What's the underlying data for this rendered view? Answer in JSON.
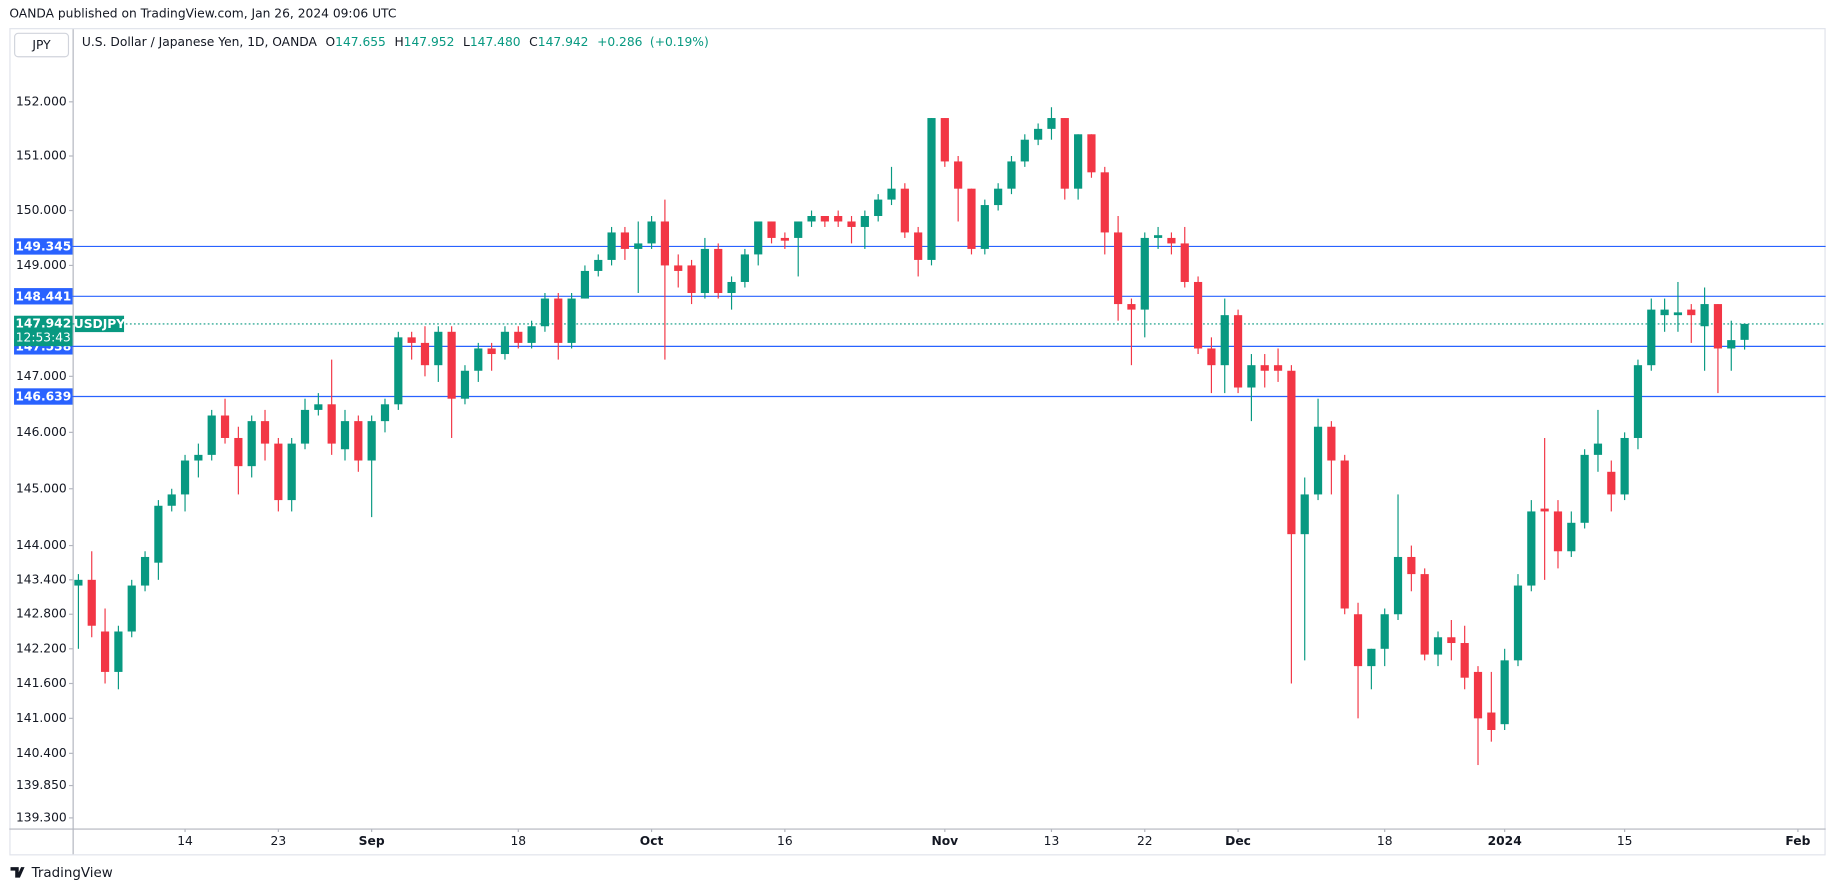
{
  "header": {
    "published": "OANDA published on TradingView.com, Jan 26, 2024 09:06 UTC"
  },
  "currency": "JPY",
  "legend": {
    "symbol": "U.S. Dollar / Japanese Yen, 1D, OANDA",
    "ohlc": [
      {
        "label": "O",
        "value": "147.655"
      },
      {
        "label": "H",
        "value": "147.952"
      },
      {
        "label": "L",
        "value": "147.480"
      },
      {
        "label": "C",
        "value": "147.942"
      }
    ],
    "change": "+0.286",
    "change_pct": "(+0.19%)"
  },
  "footer": {
    "brand": "TradingView"
  },
  "chart_data": {
    "type": "candlestick",
    "log_scale": true,
    "grid": false,
    "up_color": "#089981",
    "down_color": "#f23645",
    "level_color": "#2962ff",
    "x": [
      "2023-08-02",
      "2023-08-03",
      "2023-08-04",
      "2023-08-07",
      "2023-08-08",
      "2023-08-09",
      "2023-08-10",
      "2023-08-11",
      "2023-08-14",
      "2023-08-15",
      "2023-08-16",
      "2023-08-17",
      "2023-08-18",
      "2023-08-21",
      "2023-08-22",
      "2023-08-23",
      "2023-08-24",
      "2023-08-25",
      "2023-08-28",
      "2023-08-29",
      "2023-08-30",
      "2023-08-31",
      "2023-09-01",
      "2023-09-04",
      "2023-09-05",
      "2023-09-06",
      "2023-09-07",
      "2023-09-08",
      "2023-09-11",
      "2023-09-12",
      "2023-09-13",
      "2023-09-14",
      "2023-09-15",
      "2023-09-18",
      "2023-09-19",
      "2023-09-20",
      "2023-09-21",
      "2023-09-22",
      "2023-09-25",
      "2023-09-26",
      "2023-09-27",
      "2023-09-28",
      "2023-09-29",
      "2023-10-02",
      "2023-10-03",
      "2023-10-04",
      "2023-10-05",
      "2023-10-06",
      "2023-10-09",
      "2023-10-10",
      "2023-10-11",
      "2023-10-12",
      "2023-10-13",
      "2023-10-16",
      "2023-10-17",
      "2023-10-18",
      "2023-10-19",
      "2023-10-20",
      "2023-10-23",
      "2023-10-24",
      "2023-10-25",
      "2023-10-26",
      "2023-10-27",
      "2023-10-30",
      "2023-10-31",
      "2023-11-01",
      "2023-11-02",
      "2023-11-03",
      "2023-11-06",
      "2023-11-07",
      "2023-11-08",
      "2023-11-09",
      "2023-11-10",
      "2023-11-13",
      "2023-11-14",
      "2023-11-15",
      "2023-11-16",
      "2023-11-17",
      "2023-11-20",
      "2023-11-21",
      "2023-11-22",
      "2023-11-23",
      "2023-11-24",
      "2023-11-27",
      "2023-11-28",
      "2023-11-29",
      "2023-11-30",
      "2023-12-01",
      "2023-12-04",
      "2023-12-05",
      "2023-12-06",
      "2023-12-07",
      "2023-12-08",
      "2023-12-11",
      "2023-12-12",
      "2023-12-13",
      "2023-12-14",
      "2023-12-15",
      "2023-12-18",
      "2023-12-19",
      "2023-12-20",
      "2023-12-21",
      "2023-12-22",
      "2023-12-26",
      "2023-12-27",
      "2023-12-28",
      "2023-12-29",
      "2024-01-02",
      "2024-01-03",
      "2024-01-04",
      "2024-01-05",
      "2024-01-08",
      "2024-01-09",
      "2024-01-10",
      "2024-01-11",
      "2024-01-12",
      "2024-01-15",
      "2024-01-16",
      "2024-01-17",
      "2024-01-18",
      "2024-01-19",
      "2024-01-22",
      "2024-01-23",
      "2024-01-24",
      "2024-01-25",
      "2024-01-26"
    ],
    "open": [
      143.3,
      143.4,
      142.5,
      141.8,
      142.5,
      143.3,
      143.7,
      144.7,
      144.9,
      145.5,
      145.6,
      146.3,
      145.9,
      145.4,
      146.2,
      145.8,
      144.8,
      145.8,
      146.4,
      146.5,
      145.7,
      146.2,
      145.5,
      146.2,
      146.5,
      147.7,
      147.6,
      147.2,
      147.8,
      146.6,
      147.1,
      147.5,
      147.4,
      147.8,
      147.6,
      147.9,
      148.4,
      147.6,
      148.4,
      148.9,
      149.1,
      149.6,
      149.3,
      149.4,
      149.8,
      149.0,
      149.0,
      148.5,
      149.3,
      148.5,
      148.7,
      149.2,
      149.8,
      149.5,
      149.5,
      149.8,
      149.9,
      149.9,
      149.8,
      149.7,
      149.9,
      150.2,
      150.4,
      149.6,
      149.1,
      151.7,
      150.9,
      150.4,
      149.3,
      150.1,
      150.4,
      150.9,
      151.3,
      151.5,
      151.7,
      150.4,
      151.4,
      150.7,
      149.6,
      148.3,
      148.2,
      149.5,
      149.5,
      149.4,
      148.7,
      147.5,
      147.2,
      148.1,
      146.8,
      147.2,
      147.2,
      147.1,
      144.2,
      144.9,
      146.1,
      145.5,
      142.8,
      141.9,
      142.2,
      142.8,
      143.8,
      143.5,
      142.1,
      142.4,
      142.3,
      141.8,
      141.1,
      140.9,
      142.0,
      143.3,
      144.65,
      144.6,
      143.9,
      144.4,
      145.6,
      145.3,
      144.9,
      145.9,
      147.2,
      148.1,
      148.1,
      148.2,
      147.9,
      148.3,
      147.5,
      147.655
    ],
    "high": [
      143.5,
      143.9,
      142.9,
      142.6,
      143.4,
      143.9,
      144.8,
      145.0,
      145.6,
      145.8,
      146.4,
      146.6,
      146.1,
      146.3,
      146.4,
      145.9,
      145.9,
      146.6,
      146.7,
      147.3,
      146.4,
      146.3,
      146.3,
      146.6,
      147.8,
      147.8,
      147.9,
      147.9,
      147.9,
      147.2,
      147.6,
      147.6,
      147.9,
      147.9,
      148.0,
      148.5,
      148.5,
      148.5,
      149.0,
      149.2,
      149.7,
      149.7,
      149.8,
      149.9,
      150.2,
      149.2,
      149.1,
      149.5,
      149.4,
      148.8,
      149.3,
      149.8,
      149.8,
      149.6,
      149.8,
      150.0,
      149.9,
      150.0,
      149.9,
      150.0,
      150.3,
      150.8,
      150.5,
      149.7,
      151.7,
      151.7,
      151.0,
      150.4,
      150.2,
      150.5,
      151.0,
      151.4,
      151.6,
      151.9,
      151.7,
      151.4,
      151.4,
      150.8,
      149.9,
      148.4,
      149.6,
      149.7,
      149.6,
      149.7,
      148.8,
      147.7,
      148.4,
      148.2,
      147.4,
      147.4,
      147.5,
      147.2,
      145.2,
      146.6,
      146.2,
      145.6,
      143.0,
      142.2,
      142.9,
      144.9,
      144.0,
      143.6,
      142.5,
      142.7,
      142.6,
      141.9,
      141.8,
      142.2,
      143.5,
      144.8,
      145.9,
      144.8,
      144.6,
      145.7,
      146.4,
      145.5,
      146.0,
      147.3,
      148.4,
      148.4,
      148.7,
      148.3,
      148.6,
      148.3,
      148.0,
      147.952
    ],
    "low": [
      142.2,
      142.4,
      141.6,
      141.5,
      142.4,
      143.2,
      143.4,
      144.6,
      144.6,
      145.2,
      145.5,
      145.8,
      144.9,
      145.2,
      145.5,
      144.6,
      144.6,
      145.7,
      146.3,
      145.6,
      145.5,
      145.3,
      144.5,
      146.0,
      146.4,
      147.3,
      147.0,
      146.9,
      145.9,
      146.5,
      146.9,
      147.1,
      147.3,
      147.5,
      147.5,
      147.8,
      147.3,
      147.5,
      148.4,
      148.8,
      149.0,
      149.1,
      148.5,
      149.3,
      147.3,
      148.6,
      148.3,
      148.4,
      148.4,
      148.2,
      148.6,
      149.0,
      149.4,
      149.3,
      148.8,
      149.7,
      149.7,
      149.7,
      149.4,
      149.3,
      149.8,
      150.1,
      149.5,
      148.8,
      149.0,
      150.8,
      149.8,
      149.2,
      149.2,
      150.0,
      150.3,
      150.8,
      151.2,
      151.3,
      150.2,
      150.2,
      150.6,
      149.2,
      148.0,
      147.2,
      147.7,
      149.3,
      149.2,
      148.6,
      147.4,
      146.7,
      146.7,
      146.7,
      146.2,
      146.8,
      146.9,
      141.6,
      142.0,
      144.8,
      144.9,
      142.8,
      141.0,
      141.5,
      141.9,
      142.7,
      143.2,
      142.0,
      141.9,
      142.0,
      141.5,
      140.2,
      140.6,
      140.8,
      141.9,
      143.2,
      143.4,
      143.6,
      143.8,
      144.3,
      145.3,
      144.6,
      144.8,
      145.7,
      147.1,
      147.8,
      147.8,
      147.6,
      147.1,
      146.7,
      147.1,
      147.48
    ],
    "close": [
      143.4,
      142.6,
      141.8,
      142.5,
      143.3,
      143.8,
      144.7,
      144.9,
      145.5,
      145.6,
      146.3,
      145.9,
      145.4,
      146.2,
      145.8,
      144.8,
      145.8,
      146.4,
      146.5,
      145.8,
      146.2,
      145.5,
      146.2,
      146.5,
      147.7,
      147.6,
      147.2,
      147.8,
      146.6,
      147.1,
      147.5,
      147.4,
      147.8,
      147.6,
      147.9,
      148.4,
      147.6,
      148.4,
      148.9,
      149.1,
      149.6,
      149.3,
      149.4,
      149.8,
      149.0,
      148.9,
      148.5,
      149.3,
      148.5,
      148.7,
      149.2,
      149.8,
      149.5,
      149.45,
      149.8,
      149.9,
      149.8,
      149.8,
      149.7,
      149.9,
      150.2,
      150.4,
      149.6,
      149.1,
      151.7,
      150.9,
      150.4,
      149.3,
      150.1,
      150.4,
      150.9,
      151.3,
      151.5,
      151.7,
      150.4,
      151.4,
      150.7,
      149.6,
      148.3,
      148.2,
      149.5,
      149.55,
      149.4,
      148.7,
      147.5,
      147.2,
      148.1,
      146.8,
      147.2,
      147.1,
      147.1,
      144.2,
      144.9,
      146.1,
      145.5,
      142.9,
      141.9,
      142.2,
      142.8,
      143.8,
      143.5,
      142.1,
      142.4,
      142.3,
      141.7,
      141.0,
      140.8,
      142.0,
      143.3,
      144.6,
      144.6,
      143.9,
      144.4,
      145.6,
      145.8,
      144.9,
      145.9,
      147.2,
      148.2,
      148.2,
      148.15,
      148.1,
      148.3,
      147.5,
      147.65,
      147.942
    ],
    "levels": [
      149.345,
      148.441,
      147.538,
      146.639
    ],
    "last_price": 147.942,
    "symbol_tag": "USDJPY",
    "countdown": "12:53:43",
    "ylim": [
      139.12,
      153.35
    ],
    "yticks": [
      {
        "value": 152,
        "label": "152.000"
      },
      {
        "value": 151,
        "label": "151.000"
      },
      {
        "value": 150,
        "label": "150.000"
      },
      {
        "value": 149,
        "label": "149.000"
      },
      {
        "value": 147,
        "label": "147.000"
      },
      {
        "value": 146,
        "label": "146.000"
      },
      {
        "value": 145,
        "label": "145.000"
      },
      {
        "value": 144,
        "label": "144.000"
      },
      {
        "value": 143.4,
        "label": "143.400"
      },
      {
        "value": 142.8,
        "label": "142.800"
      },
      {
        "value": 142.2,
        "label": "142.200"
      },
      {
        "value": 141.6,
        "label": "141.600"
      },
      {
        "value": 141,
        "label": "141.000"
      },
      {
        "value": 140.4,
        "label": "140.400"
      },
      {
        "value": 139.85,
        "label": "139.850"
      },
      {
        "value": 139.3,
        "label": "139.300"
      }
    ],
    "xticks": [
      {
        "value": "2023-08-14",
        "label": "14"
      },
      {
        "value": "2023-08-23",
        "label": "23"
      },
      {
        "value": "2023-09-01",
        "label": "Sep"
      },
      {
        "value": "2023-09-18",
        "label": "18"
      },
      {
        "value": "2023-10-02",
        "label": "Oct"
      },
      {
        "value": "2023-10-16",
        "label": "16"
      },
      {
        "value": "2023-11-01",
        "label": "Nov"
      },
      {
        "value": "2023-11-13",
        "label": "13"
      },
      {
        "value": "2023-11-22",
        "label": "22"
      },
      {
        "value": "2023-12-01",
        "label": "Dec"
      },
      {
        "value": "2023-12-18",
        "label": "18"
      },
      {
        "value": "2024-01-02",
        "label": "2024"
      },
      {
        "value": "2024-01-15",
        "label": "15"
      },
      {
        "value": "2024-02-01",
        "label": "Feb"
      }
    ]
  }
}
